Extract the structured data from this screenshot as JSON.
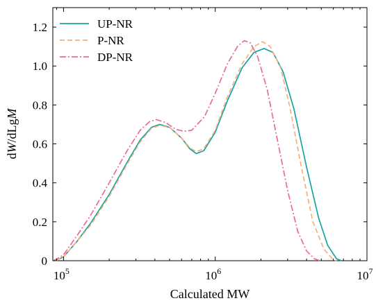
{
  "chart_data": {
    "type": "line",
    "title": "",
    "xlabel": "Calculated MW",
    "ylabel_parts": [
      {
        "t": "d",
        "italic": false
      },
      {
        "t": "W",
        "italic": true
      },
      {
        "t": "/dLg",
        "italic": false
      },
      {
        "t": "M",
        "italic": true
      }
    ],
    "x_scale": "log",
    "xlim": [
      85000,
      10000000
    ],
    "ylim": [
      0,
      1.3
    ],
    "x_ticks": [
      {
        "value": 100000,
        "base": "10",
        "exp": "5"
      },
      {
        "value": 1000000,
        "base": "10",
        "exp": "6"
      },
      {
        "value": 10000000,
        "base": "10",
        "exp": "7"
      }
    ],
    "y_ticks": [
      {
        "value": 0,
        "label": "0"
      },
      {
        "value": 0.2,
        "label": "0.2"
      },
      {
        "value": 0.4,
        "label": "0.4"
      },
      {
        "value": 0.6,
        "label": "0.6"
      },
      {
        "value": 0.8,
        "label": "0.8"
      },
      {
        "value": 1.0,
        "label": "1.0"
      },
      {
        "value": 1.2,
        "label": "1.2"
      }
    ],
    "grid": false,
    "legend_position": "top-left",
    "series": [
      {
        "name": "UP-NR",
        "color": "#17a2a1",
        "dash": "solid",
        "points": [
          [
            89000,
            0.0
          ],
          [
            100000,
            0.02
          ],
          [
            123000,
            0.1
          ],
          [
            150000,
            0.19
          ],
          [
            200000,
            0.34
          ],
          [
            260000,
            0.5
          ],
          [
            320000,
            0.62
          ],
          [
            380000,
            0.685
          ],
          [
            430000,
            0.7
          ],
          [
            500000,
            0.685
          ],
          [
            600000,
            0.63
          ],
          [
            680000,
            0.575
          ],
          [
            750000,
            0.55
          ],
          [
            840000,
            0.565
          ],
          [
            1000000,
            0.66
          ],
          [
            1200000,
            0.82
          ],
          [
            1500000,
            0.99
          ],
          [
            1800000,
            1.07
          ],
          [
            2100000,
            1.09
          ],
          [
            2400000,
            1.07
          ],
          [
            2800000,
            0.97
          ],
          [
            3300000,
            0.78
          ],
          [
            4000000,
            0.48
          ],
          [
            4800000,
            0.22
          ],
          [
            5500000,
            0.08
          ],
          [
            6300000,
            0.01
          ],
          [
            6800000,
            0.0
          ]
        ]
      },
      {
        "name": "P-NR",
        "color": "#f5b07a",
        "dash": "dashed",
        "points": [
          [
            89000,
            0.0
          ],
          [
            100000,
            0.02
          ],
          [
            123000,
            0.1
          ],
          [
            150000,
            0.18
          ],
          [
            200000,
            0.33
          ],
          [
            260000,
            0.49
          ],
          [
            320000,
            0.61
          ],
          [
            380000,
            0.68
          ],
          [
            430000,
            0.695
          ],
          [
            500000,
            0.685
          ],
          [
            600000,
            0.63
          ],
          [
            680000,
            0.58
          ],
          [
            750000,
            0.56
          ],
          [
            840000,
            0.575
          ],
          [
            1000000,
            0.67
          ],
          [
            1200000,
            0.84
          ],
          [
            1500000,
            1.01
          ],
          [
            1800000,
            1.1
          ],
          [
            2050000,
            1.125
          ],
          [
            2300000,
            1.1
          ],
          [
            2700000,
            0.99
          ],
          [
            3100000,
            0.79
          ],
          [
            3700000,
            0.48
          ],
          [
            4400000,
            0.2
          ],
          [
            5200000,
            0.06
          ],
          [
            5900000,
            0.01
          ],
          [
            6300000,
            0.0
          ]
        ]
      },
      {
        "name": "DP-NR",
        "color": "#ea6b95",
        "dash": "dashdot",
        "points": [
          [
            86000,
            0.0
          ],
          [
            100000,
            0.03
          ],
          [
            123000,
            0.13
          ],
          [
            150000,
            0.23
          ],
          [
            200000,
            0.4
          ],
          [
            260000,
            0.56
          ],
          [
            320000,
            0.67
          ],
          [
            370000,
            0.715
          ],
          [
            410000,
            0.725
          ],
          [
            470000,
            0.71
          ],
          [
            550000,
            0.675
          ],
          [
            620000,
            0.665
          ],
          [
            700000,
            0.67
          ],
          [
            850000,
            0.74
          ],
          [
            1000000,
            0.86
          ],
          [
            1200000,
            1.01
          ],
          [
            1400000,
            1.1
          ],
          [
            1550000,
            1.13
          ],
          [
            1700000,
            1.12
          ],
          [
            1900000,
            1.05
          ],
          [
            2200000,
            0.88
          ],
          [
            2600000,
            0.6
          ],
          [
            3000000,
            0.36
          ],
          [
            3500000,
            0.15
          ],
          [
            4000000,
            0.05
          ],
          [
            4500000,
            0.01
          ],
          [
            4900000,
            0.0
          ]
        ]
      }
    ]
  }
}
